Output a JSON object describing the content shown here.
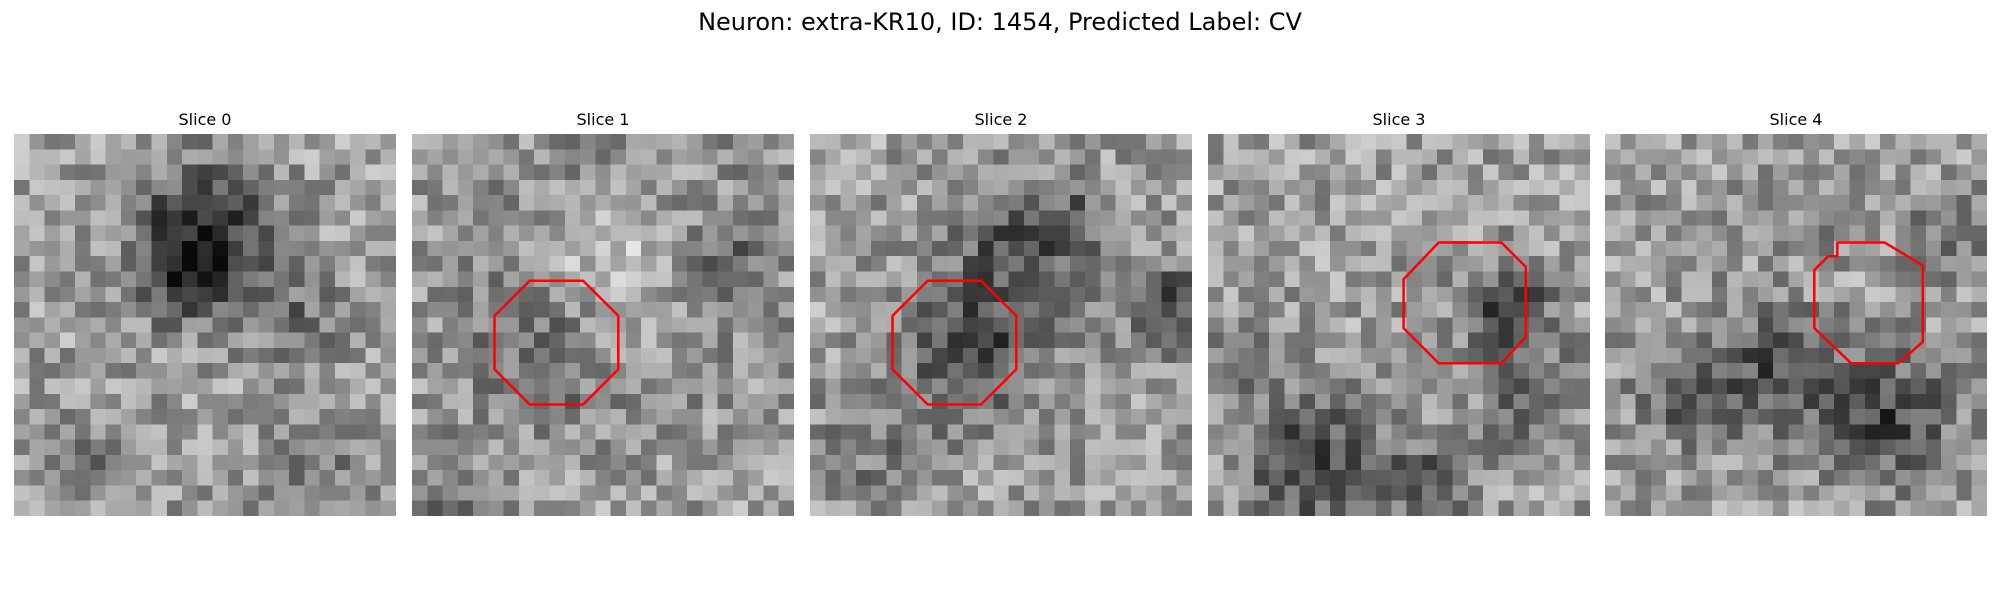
{
  "figure": {
    "title": "Neuron: extra-KR10, ID: 1454, Predicted Label: CV"
  },
  "colors": {
    "contour": "#ff0000",
    "background": "#ffffff"
  },
  "image_grid": {
    "rows": 25,
    "cols": 25
  },
  "panels": [
    {
      "title": "Slice 0",
      "seed": 11,
      "blobs": [
        [
          12,
          6,
          3,
          0.45
        ],
        [
          10,
          9,
          2,
          0.25
        ],
        [
          18,
          12,
          2,
          0.2
        ],
        [
          19,
          22,
          2,
          0.2
        ],
        [
          5,
          21,
          2,
          0.15
        ]
      ],
      "contour": null
    },
    {
      "title": "Slice 1",
      "seed": 23,
      "blobs": [
        [
          13,
          8,
          4,
          -0.4
        ],
        [
          13,
          8,
          6,
          0.25
        ],
        [
          8,
          14,
          3,
          0.15
        ],
        [
          20,
          8,
          2,
          0.25
        ],
        [
          2,
          23,
          2,
          0.2
        ]
      ],
      "contour": [
        [
          7.7,
          9.6
        ],
        [
          11.2,
          9.6
        ],
        [
          13.5,
          11.9
        ],
        [
          13.5,
          15.4
        ],
        [
          11.2,
          17.7
        ],
        [
          7.7,
          17.7
        ],
        [
          5.4,
          15.4
        ],
        [
          5.4,
          11.9
        ]
      ]
    },
    {
      "title": "Slice 2",
      "seed": 37,
      "blobs": [
        [
          10,
          14,
          3,
          0.35
        ],
        [
          13,
          7,
          3,
          0.3
        ],
        [
          23,
          11,
          2,
          0.35
        ],
        [
          4,
          20,
          3,
          0.15
        ],
        [
          17,
          5,
          2,
          0.15
        ]
      ],
      "contour": [
        [
          7.7,
          9.6
        ],
        [
          11.2,
          9.6
        ],
        [
          13.5,
          11.9
        ],
        [
          13.5,
          15.4
        ],
        [
          11.2,
          17.7
        ],
        [
          7.7,
          17.7
        ],
        [
          5.4,
          15.4
        ],
        [
          5.4,
          11.9
        ]
      ]
    },
    {
      "title": "Slice 3",
      "seed": 41,
      "blobs": [
        [
          19,
          11,
          2,
          0.4
        ],
        [
          6,
          21,
          3,
          0.35
        ],
        [
          21,
          17,
          2,
          0.3
        ],
        [
          14,
          22,
          2,
          0.25
        ],
        [
          2,
          14,
          2,
          0.15
        ]
      ],
      "contour": [
        [
          15.1,
          7.1
        ],
        [
          19.2,
          7.1
        ],
        [
          20.8,
          8.7
        ],
        [
          20.8,
          13.3
        ],
        [
          19.2,
          15.0
        ],
        [
          15.1,
          15.0
        ],
        [
          12.8,
          12.7
        ],
        [
          12.8,
          9.5
        ]
      ]
    },
    {
      "title": "Slice 4",
      "seed": 53,
      "blobs": [
        [
          10,
          15,
          3,
          0.3
        ],
        [
          18,
          18,
          3,
          0.35
        ],
        [
          4,
          17,
          2,
          0.2
        ],
        [
          22,
          6,
          2,
          0.15
        ],
        [
          13,
          4,
          2,
          0.1
        ]
      ],
      "contour": [
        [
          15.2,
          7.1
        ],
        [
          18.3,
          7.1
        ],
        [
          20.8,
          8.6
        ],
        [
          20.8,
          13.6
        ],
        [
          19.2,
          15.0
        ],
        [
          16.1,
          15.0
        ],
        [
          13.7,
          12.7
        ],
        [
          13.7,
          8.9
        ],
        [
          14.6,
          8.0
        ],
        [
          15.2,
          8.0
        ]
      ]
    }
  ]
}
